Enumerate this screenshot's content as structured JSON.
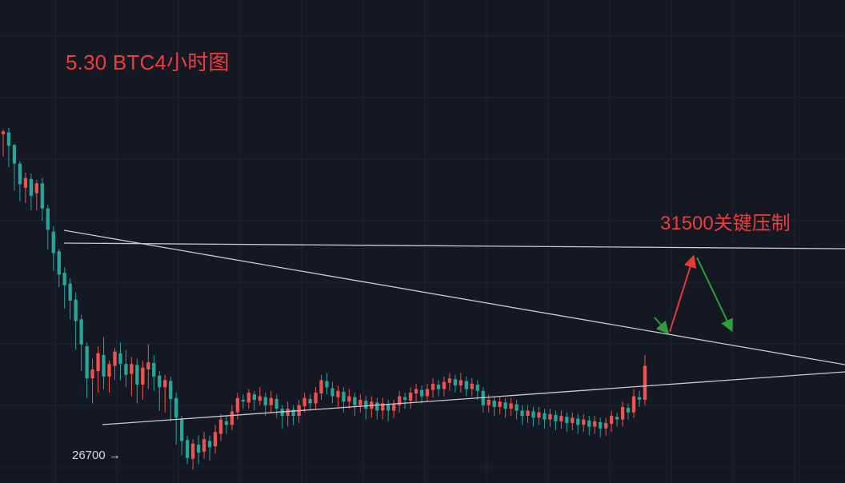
{
  "chart": {
    "title": "5.30 BTC4小时图",
    "annotation": "31500关键压制",
    "low_label": "26700 →"
  },
  "colors": {
    "background": "#141823",
    "grid": "#1e2330",
    "up": "#ef5350",
    "down": "#26a69a",
    "trendline": "#c8cad0",
    "text_red": "#f23b3b",
    "arrow_red": "#e53935",
    "arrow_green": "#2e9e3a"
  },
  "chart_data": {
    "type": "candlestick",
    "ylim": [
      26550,
      31950
    ],
    "candles": [
      [
        30450,
        30480,
        30320,
        30500,
        30200
      ],
      [
        30470,
        30320,
        30120,
        30520,
        30080
      ],
      [
        30330,
        30120,
        29860,
        30340,
        29820
      ],
      [
        30120,
        29890,
        29740,
        30150,
        29700
      ],
      [
        29850,
        29960,
        29720,
        30020,
        29680
      ],
      [
        29950,
        29760,
        29630,
        30010,
        29600
      ],
      [
        29790,
        29900,
        29680,
        29940,
        29600
      ],
      [
        29900,
        29620,
        29540,
        29960,
        29480
      ],
      [
        29620,
        29380,
        29220,
        29660,
        29160
      ],
      [
        29360,
        29120,
        28980,
        29420,
        28920
      ],
      [
        29140,
        28880,
        28820,
        29170,
        28740
      ],
      [
        28900,
        28760,
        28580,
        28960,
        28500
      ],
      [
        28780,
        28590,
        28420,
        28840,
        28380
      ],
      [
        28600,
        28360,
        28120,
        28680,
        28040
      ],
      [
        28380,
        28100,
        27860,
        28430,
        27800
      ],
      [
        28080,
        27720,
        27620,
        28120,
        27500
      ],
      [
        27720,
        27820,
        27540,
        27940,
        27440
      ],
      [
        27800,
        28000,
        27660,
        28080,
        27560
      ],
      [
        27980,
        27740,
        27680,
        28180,
        27600
      ],
      [
        27740,
        27880,
        27640,
        27920,
        27560
      ],
      [
        27860,
        28020,
        27760,
        28060,
        27700
      ],
      [
        28000,
        27880,
        27780,
        28120,
        27700
      ],
      [
        27880,
        27760,
        27690,
        28040,
        27620
      ],
      [
        27770,
        27880,
        27620,
        27960,
        27520
      ],
      [
        27870,
        27650,
        27560,
        27940,
        27440
      ],
      [
        27650,
        27840,
        27560,
        27920,
        27480
      ],
      [
        27820,
        27900,
        27680,
        28100,
        27600
      ],
      [
        27890,
        27740,
        27660,
        27980,
        27580
      ],
      [
        27750,
        27620,
        27530,
        27800,
        27360
      ],
      [
        27620,
        27700,
        27480,
        27760,
        27340
      ],
      [
        27690,
        27490,
        27380,
        27740,
        27240
      ],
      [
        27500,
        27280,
        27120,
        27560,
        26980
      ],
      [
        27270,
        27020,
        26900,
        27300,
        26860
      ],
      [
        27030,
        26830,
        26800,
        27080,
        26760
      ],
      [
        26820,
        26990,
        26760,
        27040,
        26700
      ],
      [
        26980,
        26890,
        26820,
        27080,
        26760
      ],
      [
        26900,
        27040,
        26880,
        27120,
        26820
      ],
      [
        27020,
        26950,
        26860,
        27080,
        26800
      ],
      [
        26960,
        27120,
        26900,
        27200,
        26880
      ],
      [
        27100,
        27260,
        27060,
        27320,
        27020
      ],
      [
        27240,
        27200,
        27140,
        27300,
        27100
      ],
      [
        27200,
        27350,
        27160,
        27420,
        27140
      ],
      [
        27340,
        27500,
        27300,
        27560,
        27260
      ],
      [
        27480,
        27460,
        27420,
        27540,
        27380
      ],
      [
        27450,
        27560,
        27400,
        27600,
        27380
      ],
      [
        27540,
        27480,
        27400,
        27580,
        27360
      ],
      [
        27470,
        27520,
        27440,
        27620,
        27420
      ],
      [
        27510,
        27420,
        27340,
        27560,
        27300
      ],
      [
        27420,
        27500,
        27380,
        27580,
        27340
      ],
      [
        27490,
        27380,
        27320,
        27540,
        27280
      ],
      [
        27380,
        27300,
        27220,
        27420,
        27160
      ],
      [
        27300,
        27380,
        27240,
        27460,
        27180
      ],
      [
        27370,
        27300,
        27240,
        27420,
        27200
      ],
      [
        27300,
        27420,
        27260,
        27480,
        27220
      ],
      [
        27410,
        27500,
        27380,
        27560,
        27340
      ],
      [
        27490,
        27440,
        27400,
        27540,
        27360
      ],
      [
        27440,
        27560,
        27400,
        27620,
        27380
      ],
      [
        27550,
        27700,
        27520,
        27760,
        27480
      ],
      [
        27690,
        27620,
        27580,
        27780,
        27540
      ],
      [
        27610,
        27520,
        27480,
        27680,
        27440
      ],
      [
        27510,
        27580,
        27440,
        27640,
        27400
      ],
      [
        27570,
        27460,
        27380,
        27620,
        27340
      ],
      [
        27460,
        27520,
        27420,
        27600,
        27380
      ],
      [
        27510,
        27420,
        27340,
        27560,
        27300
      ],
      [
        27420,
        27480,
        27380,
        27540,
        27340
      ],
      [
        27470,
        27380,
        27300,
        27520,
        27260
      ],
      [
        27380,
        27460,
        27320,
        27520,
        27280
      ],
      [
        27450,
        27360,
        27300,
        27500,
        27260
      ],
      [
        27360,
        27440,
        27300,
        27500,
        27260
      ],
      [
        27430,
        27360,
        27300,
        27480,
        27240
      ],
      [
        27360,
        27430,
        27320,
        27480,
        27280
      ],
      [
        27420,
        27520,
        27380,
        27580,
        27340
      ],
      [
        27510,
        27480,
        27420,
        27560,
        27380
      ],
      [
        27470,
        27560,
        27420,
        27620,
        27380
      ],
      [
        27550,
        27600,
        27500,
        27660,
        27460
      ],
      [
        27590,
        27520,
        27480,
        27640,
        27440
      ],
      [
        27520,
        27600,
        27480,
        27660,
        27460
      ],
      [
        27590,
        27660,
        27540,
        27720,
        27500
      ],
      [
        27650,
        27600,
        27560,
        27700,
        27520
      ],
      [
        27600,
        27680,
        27560,
        27740,
        27520
      ],
      [
        27670,
        27720,
        27620,
        27780,
        27580
      ],
      [
        27710,
        27640,
        27600,
        27760,
        27560
      ],
      [
        27640,
        27700,
        27600,
        27780,
        27560
      ],
      [
        27690,
        27600,
        27560,
        27740,
        27520
      ],
      [
        27600,
        27660,
        27560,
        27720,
        27520
      ],
      [
        27650,
        27580,
        27520,
        27700,
        27480
      ],
      [
        27580,
        27420,
        27380,
        27620,
        27340
      ],
      [
        27420,
        27480,
        27380,
        27540,
        27340
      ],
      [
        27470,
        27400,
        27340,
        27520,
        27300
      ],
      [
        27400,
        27460,
        27360,
        27520,
        27320
      ],
      [
        27450,
        27380,
        27320,
        27500,
        27280
      ],
      [
        27380,
        27440,
        27340,
        27500,
        27300
      ],
      [
        27430,
        27360,
        27300,
        27480,
        27260
      ],
      [
        27360,
        27300,
        27240,
        27420,
        27200
      ],
      [
        27300,
        27360,
        27260,
        27420,
        27220
      ],
      [
        27350,
        27280,
        27220,
        27400,
        27180
      ],
      [
        27280,
        27340,
        27240,
        27400,
        27200
      ],
      [
        27330,
        27260,
        27200,
        27380,
        27160
      ],
      [
        27260,
        27320,
        27220,
        27380,
        27180
      ],
      [
        27310,
        27240,
        27180,
        27360,
        27140
      ],
      [
        27240,
        27300,
        27200,
        27360,
        27160
      ],
      [
        27290,
        27220,
        27160,
        27340,
        27120
      ],
      [
        27220,
        27280,
        27180,
        27340,
        27140
      ],
      [
        27270,
        27200,
        27140,
        27320,
        27100
      ],
      [
        27200,
        27260,
        27160,
        27320,
        27120
      ],
      [
        27250,
        27180,
        27120,
        27300,
        27080
      ],
      [
        27180,
        27240,
        27140,
        27300,
        27100
      ],
      [
        27230,
        27160,
        27100,
        27280,
        27060
      ],
      [
        27160,
        27220,
        27120,
        27280,
        27080
      ],
      [
        27210,
        27300,
        27160,
        27360,
        27120
      ],
      [
        27290,
        27260,
        27220,
        27340,
        27180
      ],
      [
        27260,
        27400,
        27220,
        27460,
        27180
      ],
      [
        27390,
        27340,
        27300,
        27440,
        27260
      ],
      [
        27340,
        27520,
        27300,
        27600,
        27280
      ],
      [
        27510,
        27480,
        27440,
        27580,
        27400
      ],
      [
        27480,
        27860,
        27440,
        27980,
        27420
      ]
    ],
    "trendlines": [
      {
        "points": [
          [
            0,
            29650
          ],
          [
            189,
            29360
          ]
        ]
      },
      {
        "points": [
          [
            0,
            29560
          ],
          [
            189,
            27140
          ]
        ]
      },
      {
        "points": [
          [
            0,
            27000
          ],
          [
            189,
            27650
          ]
        ]
      }
    ]
  }
}
